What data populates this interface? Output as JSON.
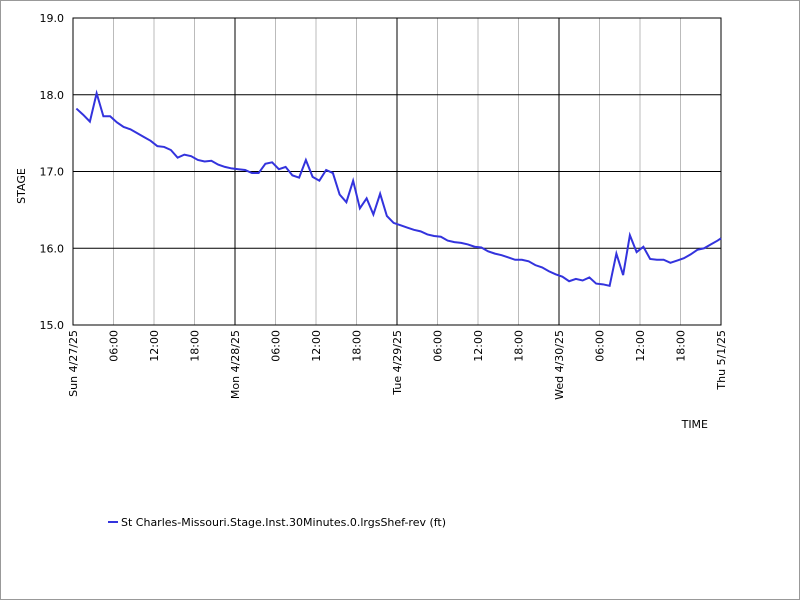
{
  "chart_data": {
    "type": "line",
    "ylabel": "STAGE",
    "xlabel": "TIME",
    "x": [
      "2025-04-27T00:30",
      "2025-04-27T01:30",
      "2025-04-27T02:30",
      "2025-04-27T03:30",
      "2025-04-27T04:30",
      "2025-04-27T05:30",
      "2025-04-27T06:30",
      "2025-04-27T07:30",
      "2025-04-27T08:30",
      "2025-04-27T09:30",
      "2025-04-27T10:30",
      "2025-04-27T11:30",
      "2025-04-27T12:30",
      "2025-04-27T13:30",
      "2025-04-27T14:30",
      "2025-04-27T15:30",
      "2025-04-27T16:30",
      "2025-04-27T17:30",
      "2025-04-27T18:30",
      "2025-04-27T19:30",
      "2025-04-27T20:30",
      "2025-04-27T21:30",
      "2025-04-27T22:30",
      "2025-04-27T23:30",
      "2025-04-28T00:30",
      "2025-04-28T01:30",
      "2025-04-28T02:30",
      "2025-04-28T03:30",
      "2025-04-28T04:30",
      "2025-04-28T05:30",
      "2025-04-28T06:30",
      "2025-04-28T07:30",
      "2025-04-28T08:30",
      "2025-04-28T09:30",
      "2025-04-28T10:30",
      "2025-04-28T11:30",
      "2025-04-28T12:30",
      "2025-04-28T13:30",
      "2025-04-28T14:30",
      "2025-04-28T15:30",
      "2025-04-28T16:30",
      "2025-04-28T17:30",
      "2025-04-28T18:30",
      "2025-04-28T19:30",
      "2025-04-28T20:30",
      "2025-04-28T21:30",
      "2025-04-28T22:30",
      "2025-04-28T23:30",
      "2025-04-29T00:30",
      "2025-04-29T01:30",
      "2025-04-29T02:30",
      "2025-04-29T03:30",
      "2025-04-29T04:30",
      "2025-04-29T05:30",
      "2025-04-29T06:30",
      "2025-04-29T07:30",
      "2025-04-29T08:30",
      "2025-04-29T09:30",
      "2025-04-29T10:30",
      "2025-04-29T11:30",
      "2025-04-29T12:30",
      "2025-04-29T13:30",
      "2025-04-29T14:30",
      "2025-04-29T15:30",
      "2025-04-29T16:30",
      "2025-04-29T17:30",
      "2025-04-29T18:30",
      "2025-04-29T19:30",
      "2025-04-29T20:30",
      "2025-04-29T21:30",
      "2025-04-29T22:30",
      "2025-04-29T23:30",
      "2025-04-30T00:30",
      "2025-04-30T01:30",
      "2025-04-30T02:30",
      "2025-04-30T03:30",
      "2025-04-30T04:30",
      "2025-04-30T05:30",
      "2025-04-30T06:30",
      "2025-04-30T07:30",
      "2025-04-30T08:30",
      "2025-04-30T09:30",
      "2025-04-30T10:30",
      "2025-04-30T11:30",
      "2025-04-30T12:30",
      "2025-04-30T13:30",
      "2025-04-30T14:30",
      "2025-04-30T15:30",
      "2025-04-30T16:30",
      "2025-04-30T17:30",
      "2025-04-30T18:30",
      "2025-04-30T19:30",
      "2025-04-30T20:30",
      "2025-04-30T21:30",
      "2025-04-30T22:30",
      "2025-04-30T23:30",
      "2025-05-01T00:00"
    ],
    "series": [
      {
        "name": "St Charles-Missouri.Stage.Inst.30Minutes.0.lrgsShef-rev (ft)",
        "color": "#3333dd",
        "values": [
          17.82,
          17.74,
          17.65,
          18.02,
          17.72,
          17.72,
          17.64,
          17.58,
          17.55,
          17.5,
          17.45,
          17.4,
          17.33,
          17.32,
          17.28,
          17.18,
          17.22,
          17.2,
          17.15,
          17.13,
          17.14,
          17.09,
          17.06,
          17.04,
          17.03,
          17.02,
          16.98,
          16.98,
          17.1,
          17.12,
          17.03,
          17.06,
          16.95,
          16.92,
          17.15,
          16.93,
          16.88,
          17.02,
          16.98,
          16.7,
          16.6,
          16.88,
          16.52,
          16.65,
          16.44,
          16.71,
          16.42,
          16.33,
          16.3,
          16.27,
          16.24,
          16.22,
          16.18,
          16.16,
          16.15,
          16.1,
          16.08,
          16.07,
          16.05,
          16.02,
          16.01,
          15.96,
          15.93,
          15.91,
          15.88,
          15.85,
          15.85,
          15.83,
          15.78,
          15.75,
          15.7,
          15.66,
          15.63,
          15.57,
          15.6,
          15.58,
          15.62,
          15.54,
          15.53,
          15.51,
          15.93,
          15.65,
          16.17,
          15.95,
          16.02,
          15.86,
          15.85,
          15.85,
          15.81,
          15.84,
          15.87,
          15.92,
          15.98,
          16.0,
          16.05,
          16.1,
          16.13
        ]
      }
    ],
    "xlim": [
      "2025-04-27T00:00",
      "2025-05-01T00:00"
    ],
    "xticks": [
      {
        "value": "2025-04-27T00:00",
        "label": "Sun 4/27/25"
      },
      {
        "value": "2025-04-27T06:00",
        "label": "06:00"
      },
      {
        "value": "2025-04-27T12:00",
        "label": "12:00"
      },
      {
        "value": "2025-04-27T18:00",
        "label": "18:00"
      },
      {
        "value": "2025-04-28T00:00",
        "label": "Mon 4/28/25"
      },
      {
        "value": "2025-04-28T06:00",
        "label": "06:00"
      },
      {
        "value": "2025-04-28T12:00",
        "label": "12:00"
      },
      {
        "value": "2025-04-28T18:00",
        "label": "18:00"
      },
      {
        "value": "2025-04-29T00:00",
        "label": "Tue 4/29/25"
      },
      {
        "value": "2025-04-29T06:00",
        "label": "06:00"
      },
      {
        "value": "2025-04-29T12:00",
        "label": "12:00"
      },
      {
        "value": "2025-04-29T18:00",
        "label": "18:00"
      },
      {
        "value": "2025-04-30T00:00",
        "label": "Wed 4/30/25"
      },
      {
        "value": "2025-04-30T06:00",
        "label": "06:00"
      },
      {
        "value": "2025-04-30T12:00",
        "label": "12:00"
      },
      {
        "value": "2025-04-30T18:00",
        "label": "18:00"
      },
      {
        "value": "2025-05-01T00:00",
        "label": "Thu 5/1/25"
      }
    ],
    "ylim": [
      15,
      19
    ],
    "yticks": [
      {
        "value": 15,
        "label": "15.0"
      },
      {
        "value": 16,
        "label": "16.0"
      },
      {
        "value": 17,
        "label": "17.0"
      },
      {
        "value": 18,
        "label": "18.0"
      },
      {
        "value": 19,
        "label": "19.0"
      }
    ],
    "grid": true
  }
}
